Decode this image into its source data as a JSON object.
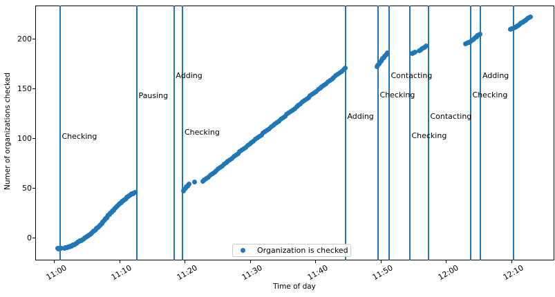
{
  "figure": {
    "background_color": "#ffffff",
    "accent_color": "#1f77b4",
    "spine_color": "#000000"
  },
  "chart_data": {
    "type": "scatter",
    "title": "",
    "xlabel": "Time of day",
    "ylabel": "Numer of organizations checked",
    "x_unit": "minutes after 11:00",
    "xlim_minutes": [
      -2.9,
      76.6
    ],
    "ylim": [
      -22,
      233
    ],
    "grid": false,
    "x_ticks": [
      {
        "label": "11:00",
        "m": 0
      },
      {
        "label": "11:10",
        "m": 10
      },
      {
        "label": "11:20",
        "m": 20
      },
      {
        "label": "11:30",
        "m": 30
      },
      {
        "label": "11:40",
        "m": 40
      },
      {
        "label": "11:50",
        "m": 50
      },
      {
        "label": "12:00",
        "m": 60
      },
      {
        "label": "12:10",
        "m": 70
      }
    ],
    "y_ticks": [
      {
        "label": "0",
        "v": 0
      },
      {
        "label": "50",
        "v": 50
      },
      {
        "label": "100",
        "v": 100
      },
      {
        "label": "150",
        "v": 150
      },
      {
        "label": "200",
        "v": 200
      }
    ],
    "legend": {
      "position": "lower center",
      "entries": [
        {
          "label": "Organization is checked",
          "marker": "circle",
          "color": "#1f77b4"
        }
      ]
    },
    "vlines": [
      {
        "time": "11:01",
        "m": 0.9,
        "label": "Checking",
        "label_v": 102
      },
      {
        "time": "11:13",
        "m": 12.65,
        "label": "Pausing",
        "label_v": 143
      },
      {
        "time": "11:18",
        "m": 18.35,
        "label": "Adding",
        "label_v": 163
      },
      {
        "time": "11:20",
        "m": 19.68,
        "label": "Checking",
        "label_v": 106
      },
      {
        "time": "11:45",
        "m": 44.6,
        "label": "Adding",
        "label_v": 122.5
      },
      {
        "time": "11:50",
        "m": 49.58,
        "label": "Checking",
        "label_v": 143.5
      },
      {
        "time": "11:51",
        "m": 51.27,
        "label": "Contacting",
        "label_v": 163
      },
      {
        "time": "11:54",
        "m": 54.44,
        "label": "Checking",
        "label_v": 102.5
      },
      {
        "time": "11:57",
        "m": 57.3,
        "label": "Contacting",
        "label_v": 122.5
      },
      {
        "time": "12:04",
        "m": 63.76,
        "label": "Checking",
        "label_v": 144
      },
      {
        "time": "12:05",
        "m": 65.29,
        "label": "Adding",
        "label_v": 163.5
      },
      {
        "time": "12:10",
        "m": 70.37,
        "label": "",
        "label_v": null
      }
    ],
    "series": [
      {
        "name": "Organization is checked",
        "color": "#1f77b4",
        "marker": "circle",
        "points": [
          [
            0.5,
            -10.6
          ],
          [
            0.62,
            -10.9
          ],
          [
            0.75,
            -10.4
          ],
          [
            0.9,
            -10.7
          ],
          [
            1.05,
            -10.5
          ],
          [
            1.55,
            -10.2
          ],
          [
            1.7,
            -9.9
          ],
          [
            1.85,
            -9.6
          ],
          [
            2.0,
            -9.4
          ],
          [
            2.15,
            -9.0
          ],
          [
            2.3,
            -8.7
          ],
          [
            2.45,
            -8.3
          ],
          [
            2.6,
            -8.0
          ],
          [
            2.75,
            -7.5
          ],
          [
            2.9,
            -7.1
          ],
          [
            3.05,
            -6.6
          ],
          [
            3.2,
            -6.2
          ],
          [
            3.35,
            -5.6
          ],
          [
            3.5,
            -5.1
          ],
          [
            3.65,
            -4.4
          ],
          [
            3.8,
            -3.8
          ],
          [
            3.95,
            -3.1
          ],
          [
            4.1,
            -2.5
          ],
          [
            4.25,
            -1.8
          ],
          [
            4.4,
            -1.2
          ],
          [
            4.55,
            -0.4
          ],
          [
            4.7,
            0.3
          ],
          [
            4.85,
            1.0
          ],
          [
            5.0,
            1.4
          ],
          [
            5.15,
            2.2
          ],
          [
            5.3,
            3.0
          ],
          [
            5.45,
            3.6
          ],
          [
            5.6,
            4.3
          ],
          [
            5.75,
            5.2
          ],
          [
            5.9,
            6.0
          ],
          [
            6.05,
            6.8
          ],
          [
            6.2,
            7.7
          ],
          [
            6.35,
            8.5
          ],
          [
            6.5,
            9.4
          ],
          [
            6.65,
            10.4
          ],
          [
            6.8,
            11.3
          ],
          [
            6.95,
            12.4
          ],
          [
            7.1,
            13.4
          ],
          [
            7.25,
            14.6
          ],
          [
            7.4,
            15.7
          ],
          [
            7.55,
            16.9
          ],
          [
            7.7,
            18.1
          ],
          [
            7.85,
            19.3
          ],
          [
            8.0,
            20.4
          ],
          [
            8.15,
            21.5
          ],
          [
            8.3,
            22.7
          ],
          [
            8.45,
            23.8
          ],
          [
            8.6,
            24.9
          ],
          [
            8.75,
            26.0
          ],
          [
            8.9,
            27.0
          ],
          [
            9.05,
            28.1
          ],
          [
            9.2,
            29.1
          ],
          [
            9.35,
            30.1
          ],
          [
            9.5,
            31.0
          ],
          [
            9.65,
            32.0
          ],
          [
            9.8,
            33.0
          ],
          [
            9.95,
            33.9
          ],
          [
            10.1,
            34.8
          ],
          [
            10.25,
            35.7
          ],
          [
            10.4,
            36.6
          ],
          [
            10.55,
            37.5
          ],
          [
            10.7,
            38.3
          ],
          [
            10.85,
            39.1
          ],
          [
            11.0,
            39.9
          ],
          [
            11.15,
            40.7
          ],
          [
            11.3,
            41.5
          ],
          [
            11.45,
            42.2
          ],
          [
            11.6,
            42.9
          ],
          [
            11.75,
            43.5
          ],
          [
            11.9,
            44.1
          ],
          [
            12.05,
            44.6
          ],
          [
            12.2,
            45.1
          ],
          [
            12.33,
            45.5
          ],
          [
            19.78,
            47.2
          ],
          [
            19.9,
            48.3
          ],
          [
            20.0,
            49.3
          ],
          [
            20.12,
            50.3
          ],
          [
            20.25,
            51.3
          ],
          [
            20.4,
            52.3
          ],
          [
            20.52,
            53.2
          ],
          [
            20.65,
            54.0
          ],
          [
            21.5,
            56.0
          ],
          [
            22.7,
            57.0
          ],
          [
            23.0,
            58.4
          ],
          [
            23.3,
            60.0
          ],
          [
            23.6,
            61.3
          ],
          [
            23.9,
            63.0
          ],
          [
            24.2,
            64.6
          ],
          [
            24.5,
            66.0
          ],
          [
            24.8,
            67.6
          ],
          [
            25.1,
            69.4
          ],
          [
            25.4,
            70.8
          ],
          [
            25.7,
            72.3
          ],
          [
            26.0,
            74.0
          ],
          [
            26.3,
            75.8
          ],
          [
            26.6,
            77.0
          ],
          [
            26.9,
            78.5
          ],
          [
            27.2,
            80.2
          ],
          [
            27.5,
            81.9
          ],
          [
            27.8,
            83.2
          ],
          [
            28.1,
            84.8
          ],
          [
            28.4,
            86.5
          ],
          [
            28.7,
            88.2
          ],
          [
            29.0,
            89.5
          ],
          [
            29.3,
            91.0
          ],
          [
            29.6,
            92.8
          ],
          [
            29.9,
            94.5
          ],
          [
            30.2,
            95.7
          ],
          [
            30.5,
            97.2
          ],
          [
            30.8,
            99.0
          ],
          [
            31.1,
            100.8
          ],
          [
            31.4,
            102.0
          ],
          [
            31.7,
            103.5
          ],
          [
            32.0,
            105.3
          ],
          [
            32.3,
            107.0
          ],
          [
            32.6,
            108.2
          ],
          [
            32.9,
            109.8
          ],
          [
            33.2,
            111.5
          ],
          [
            33.5,
            113.2
          ],
          [
            33.8,
            114.5
          ],
          [
            34.1,
            116.0
          ],
          [
            34.4,
            117.7
          ],
          [
            34.7,
            119.5
          ],
          [
            35.0,
            120.8
          ],
          [
            35.3,
            122.2
          ],
          [
            35.6,
            124.0
          ],
          [
            35.9,
            125.8
          ],
          [
            36.2,
            127.0
          ],
          [
            36.5,
            128.5
          ],
          [
            36.8,
            130.2
          ],
          [
            37.1,
            132.0
          ],
          [
            37.4,
            133.2
          ],
          [
            37.7,
            134.8
          ],
          [
            38.0,
            136.5
          ],
          [
            38.3,
            138.2
          ],
          [
            38.6,
            139.5
          ],
          [
            38.9,
            141.0
          ],
          [
            39.2,
            142.8
          ],
          [
            39.5,
            144.5
          ],
          [
            39.8,
            145.8
          ],
          [
            40.1,
            147.3
          ],
          [
            40.4,
            149.0
          ],
          [
            40.7,
            150.8
          ],
          [
            41.0,
            152.0
          ],
          [
            41.3,
            153.5
          ],
          [
            41.6,
            155.2
          ],
          [
            41.9,
            157.0
          ],
          [
            42.2,
            158.2
          ],
          [
            42.5,
            159.7
          ],
          [
            42.8,
            161.4
          ],
          [
            43.1,
            163.1
          ],
          [
            43.4,
            164.4
          ],
          [
            43.7,
            165.9
          ],
          [
            44.0,
            167.6
          ],
          [
            44.3,
            169.2
          ],
          [
            44.6,
            170.8
          ],
          [
            49.42,
            172.0
          ],
          [
            49.55,
            173.3
          ],
          [
            49.7,
            174.8
          ],
          [
            49.85,
            176.2
          ],
          [
            50.0,
            177.6
          ],
          [
            50.15,
            179.0
          ],
          [
            50.3,
            180.3
          ],
          [
            50.45,
            181.5
          ],
          [
            50.6,
            182.6
          ],
          [
            50.75,
            183.7
          ],
          [
            50.9,
            184.8
          ],
          [
            51.05,
            185.8
          ],
          [
            54.85,
            185.2
          ],
          [
            55.05,
            186.1
          ],
          [
            55.25,
            187.0
          ],
          [
            55.9,
            188.3
          ],
          [
            56.1,
            189.2
          ],
          [
            56.3,
            190.2
          ],
          [
            56.5,
            191.1
          ],
          [
            56.7,
            192.0
          ],
          [
            56.9,
            192.9
          ],
          [
            63.0,
            195.2
          ],
          [
            63.18,
            195.7
          ],
          [
            63.36,
            196.2
          ],
          [
            63.54,
            196.8
          ],
          [
            63.72,
            197.5
          ],
          [
            63.9,
            198.4
          ],
          [
            64.08,
            199.3
          ],
          [
            64.26,
            200.3
          ],
          [
            64.44,
            201.3
          ],
          [
            64.62,
            202.3
          ],
          [
            64.8,
            203.3
          ],
          [
            64.98,
            204.2
          ],
          [
            65.15,
            205.0
          ],
          [
            69.8,
            209.6
          ],
          [
            70.0,
            210.1
          ],
          [
            70.2,
            210.6
          ],
          [
            70.4,
            211.1
          ],
          [
            70.6,
            211.7
          ],
          [
            70.78,
            212.4
          ],
          [
            70.95,
            213.2
          ],
          [
            71.12,
            214.1
          ],
          [
            71.3,
            215.0
          ],
          [
            71.47,
            215.9
          ],
          [
            71.64,
            216.8
          ],
          [
            71.8,
            217.6
          ],
          [
            71.97,
            218.3
          ],
          [
            72.14,
            219.0
          ],
          [
            72.3,
            219.7
          ],
          [
            72.5,
            220.5
          ],
          [
            72.7,
            221.3
          ],
          [
            72.9,
            222.1
          ]
        ]
      }
    ]
  }
}
